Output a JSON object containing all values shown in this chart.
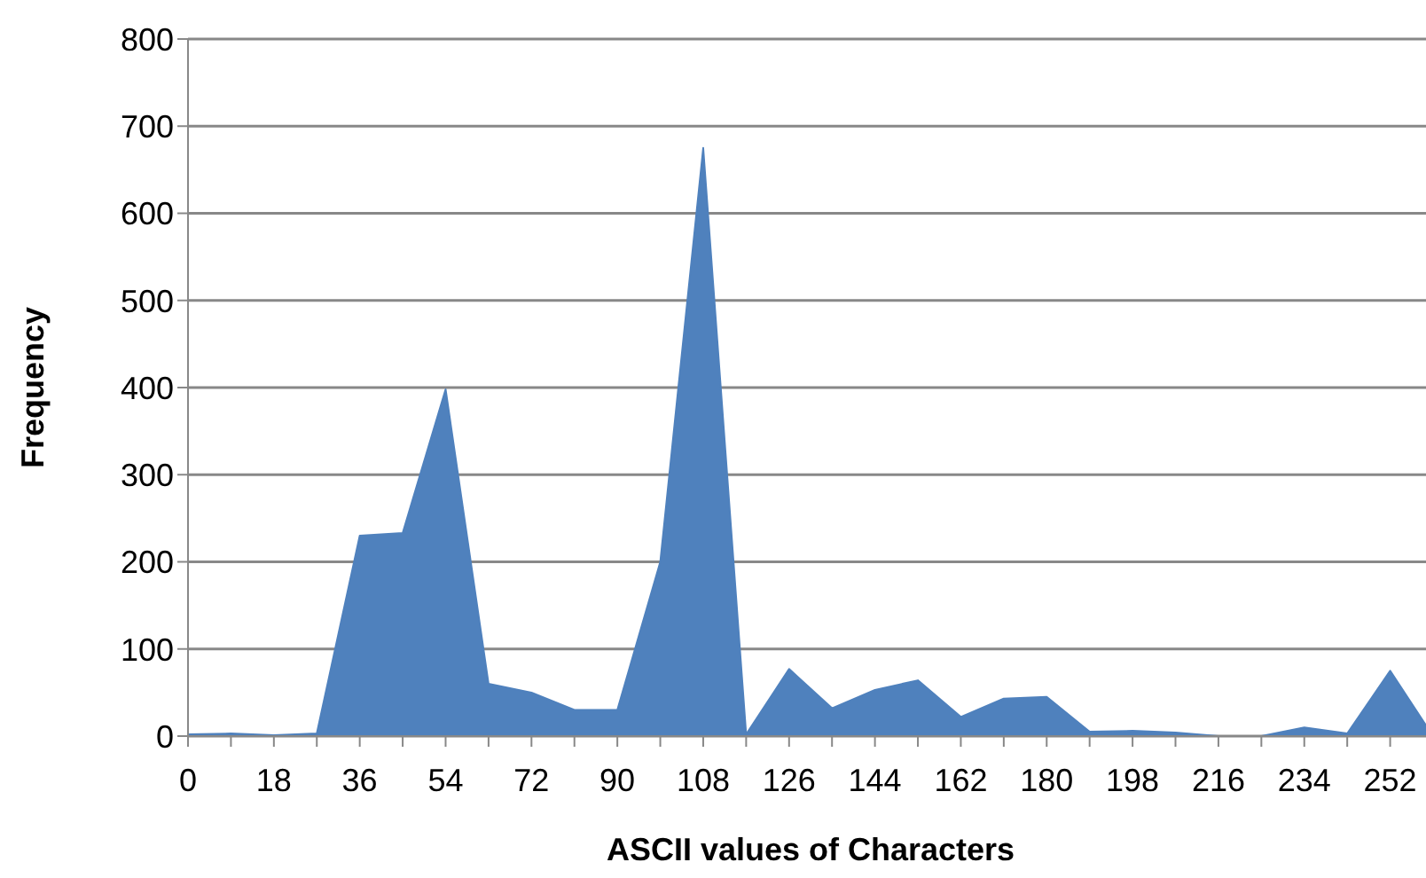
{
  "chart_data": {
    "type": "area",
    "xlabel": "ASCII values of Characters",
    "ylabel": "Frequency",
    "categories": [
      "0",
      null,
      "18",
      null,
      "36",
      null,
      "54",
      null,
      "72",
      null,
      "90",
      null,
      "108",
      null,
      "126",
      null,
      "144",
      null,
      "162",
      null,
      "180",
      null,
      "198",
      null,
      "216",
      null,
      "234",
      null,
      "252",
      null
    ],
    "series": [
      {
        "color": "#4f81bd",
        "values": [
          2,
          3,
          1,
          3,
          230,
          233,
          398,
          60,
          50,
          30,
          30,
          200,
          675,
          2,
          77,
          32,
          53,
          64,
          22,
          43,
          45,
          5,
          6,
          4,
          0,
          0,
          10,
          3,
          75,
          0
        ]
      }
    ],
    "ylim": [
      0,
      800
    ],
    "yticks": [
      0,
      100,
      200,
      300,
      400,
      500,
      600,
      700,
      800
    ],
    "grid": "y",
    "legend": false
  }
}
